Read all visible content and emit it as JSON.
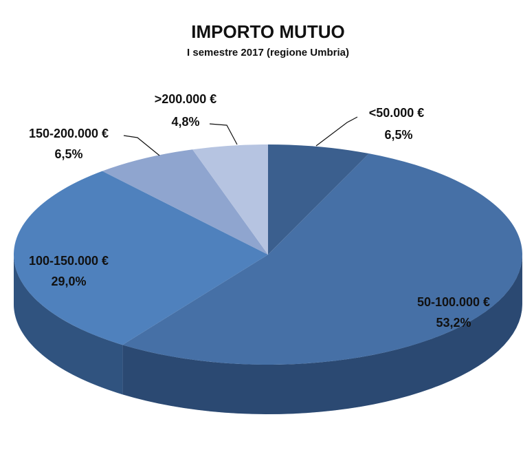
{
  "chart_data": {
    "type": "pie",
    "title": "IMPORTO MUTUO",
    "subtitle": "I semestre 2017 (regione Umbria)",
    "categories": [
      "<50.000 €",
      "50-100.000 €",
      "100-150.000 €",
      "150-200.000 €",
      ">200.000 €"
    ],
    "values": [
      6.5,
      53.2,
      29.0,
      6.5,
      4.8
    ],
    "value_labels": [
      "6,5%",
      "53,2%",
      "29,0%",
      "6,5%",
      "4,8%"
    ],
    "colors": [
      "#3b5f8e",
      "#4670a6",
      "#4f81bd",
      "#8fa5cf",
      "#b6c4e1"
    ]
  }
}
